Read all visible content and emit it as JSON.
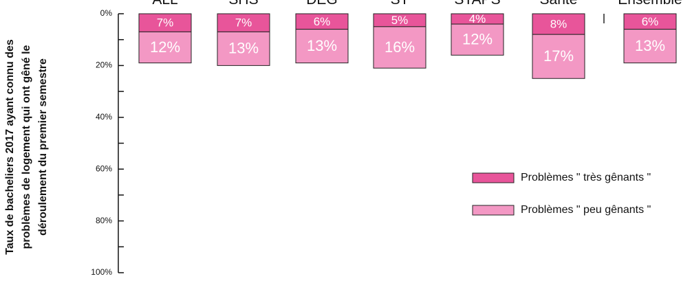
{
  "chart_data": {
    "type": "stacked_bar",
    "y_axis_label": [
      "Taux de bacheliers 2017 ayant connu des",
      "problèmes de logement qui ont gêné le",
      "déroulement du premier semestre"
    ],
    "categories": [
      "ALL",
      "SHS",
      "DEG",
      "ST",
      "STAPS",
      "Santé",
      "Ensemble"
    ],
    "series": [
      {
        "name": "Problèmes \" très gênants \"",
        "color": "#e8559a",
        "values": [
          7,
          7,
          6,
          5,
          4,
          8,
          6
        ],
        "value_labels": [
          "7%",
          "7%",
          "6%",
          "5%",
          "4%",
          "8%",
          "6%"
        ]
      },
      {
        "name": "Problèmes \" peu gênants \"",
        "color": "#f398c4",
        "values": [
          12,
          13,
          13,
          16,
          12,
          17,
          13
        ],
        "value_labels": [
          "12%",
          "13%",
          "13%",
          "16%",
          "12%",
          "17%",
          "13%"
        ]
      }
    ],
    "ylim": [
      0,
      100
    ],
    "y_inverted": true,
    "yticks": [
      {
        "value": 0,
        "label": "0%"
      },
      {
        "value": 20,
        "label": "20%"
      },
      {
        "value": 40,
        "label": "40%"
      },
      {
        "value": 60,
        "label": "60%"
      },
      {
        "value": 80,
        "label": "80%"
      },
      {
        "value": 100,
        "label": "100%"
      }
    ],
    "minor_yticks": [
      10,
      30,
      50,
      70,
      90
    ],
    "grid": false
  }
}
